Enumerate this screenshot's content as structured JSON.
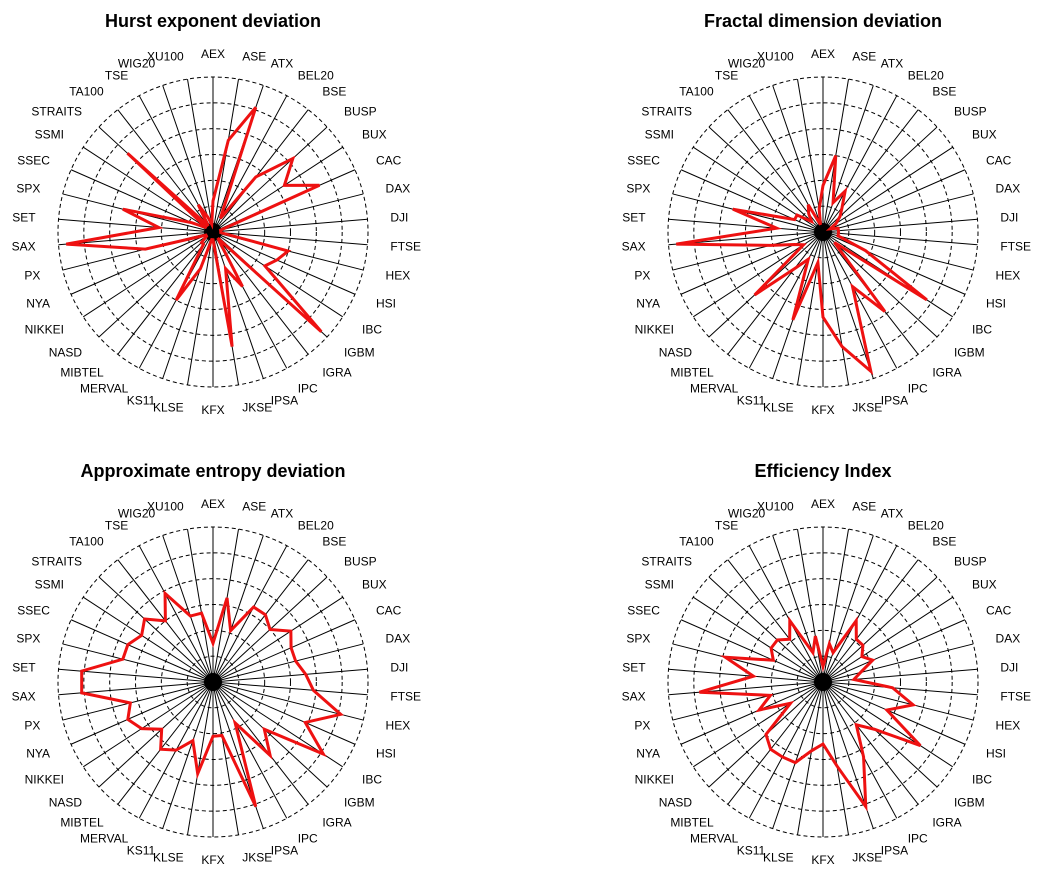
{
  "colors": {
    "series": "#ee1111",
    "grid": "#000000",
    "background": "#ffffff"
  },
  "chart_data": [
    {
      "type": "radar",
      "title": "Hurst exponent deviation",
      "rmax": 1,
      "rings": 6,
      "grid": "dashed rings, solid spokes",
      "categories": [
        "AEX",
        "ASE",
        "ATX",
        "BEL20",
        "BSE",
        "BUSP",
        "BUX",
        "CAC",
        "DAX",
        "DJI",
        "FTSE",
        "HEX",
        "HSI",
        "IBC",
        "IGBM",
        "IGRA",
        "IPC",
        "IPSA",
        "JKSE",
        "KFX",
        "KLSE",
        "KS11",
        "MERVAL",
        "MIBTEL",
        "NASD",
        "NIKKEI",
        "NYA",
        "PX",
        "SAX",
        "SET",
        "SPX",
        "SSEC",
        "SSMI",
        "STRAITS",
        "TA100",
        "TSE",
        "WIG20",
        "XU100"
      ],
      "series": [
        {
          "values": [
            0.2,
            0.6,
            0.85,
            0.1,
            0.45,
            0.7,
            0.55,
            0.75,
            0.05,
            0.05,
            0.05,
            0.5,
            0.45,
            0.4,
            0.95,
            0.05,
            0.4,
            0.25,
            0.75,
            0.05,
            0.05,
            0.25,
            0.5,
            0.1,
            0.1,
            0.05,
            0.05,
            0.45,
            0.95,
            0.35,
            0.6,
            0.15,
            0.05,
            0.75,
            0.05,
            0.2,
            0.1,
            0.05
          ]
        }
      ]
    },
    {
      "type": "radar",
      "title": "Fractal dimension deviation",
      "rmax": 1,
      "rings": 6,
      "grid": "dashed rings, solid spokes",
      "categories": [
        "AEX",
        "ASE",
        "ATX",
        "BEL20",
        "BSE",
        "BUSP",
        "BUX",
        "CAC",
        "DAX",
        "DJI",
        "FTSE",
        "HEX",
        "HSI",
        "IBC",
        "IGBM",
        "IGRA",
        "IPC",
        "IPSA",
        "JKSE",
        "KFX",
        "KLSE",
        "KS11",
        "MERVAL",
        "MIBTEL",
        "NASD",
        "NIKKEI",
        "NYA",
        "PX",
        "SAX",
        "SET",
        "SPX",
        "SSEC",
        "SSMI",
        "STRAITS",
        "TA100",
        "TSE",
        "WIG20",
        "XU100"
      ],
      "series": [
        {
          "values": [
            0.3,
            0.5,
            0.2,
            0.3,
            0.2,
            0.15,
            0.1,
            0.05,
            0.1,
            0.1,
            0.1,
            0.1,
            0.3,
            0.8,
            0.1,
            0.65,
            0.4,
            0.95,
            0.75,
            0.55,
            0.2,
            0.6,
            0.2,
            0.3,
            0.6,
            0.15,
            0.2,
            0.35,
            0.95,
            0.3,
            0.6,
            0.2,
            0.2,
            0.1,
            0.15,
            0.2,
            0.05,
            0.15
          ]
        }
      ]
    },
    {
      "type": "radar",
      "title": "Approximate entropy deviation",
      "rmax": 1,
      "rings": 6,
      "grid": "dashed rings, solid spokes",
      "categories": [
        "AEX",
        "ASE",
        "ATX",
        "BEL20",
        "BSE",
        "BUSP",
        "BUX",
        "CAC",
        "DAX",
        "DJI",
        "FTSE",
        "HEX",
        "HSI",
        "IBC",
        "IGBM",
        "IGRA",
        "IPC",
        "IPSA",
        "JKSE",
        "KFX",
        "KLSE",
        "KS11",
        "MERVAL",
        "MIBTEL",
        "NASD",
        "NIKKEI",
        "NYA",
        "PX",
        "SAX",
        "SET",
        "SPX",
        "SSEC",
        "SSMI",
        "STRAITS",
        "TA100",
        "TSE",
        "WIG20",
        "XU100"
      ],
      "series": [
        {
          "values": [
            0.25,
            0.55,
            0.35,
            0.55,
            0.55,
            0.5,
            0.6,
            0.55,
            0.55,
            0.6,
            0.65,
            0.85,
            0.65,
            0.85,
            0.45,
            0.6,
            0.3,
            0.85,
            0.35,
            0.35,
            0.6,
            0.4,
            0.5,
            0.55,
            0.45,
            0.55,
            0.6,
            0.55,
            0.85,
            0.85,
            0.6,
            0.6,
            0.55,
            0.6,
            0.5,
            0.65,
            0.45,
            0.45
          ]
        }
      ]
    },
    {
      "type": "radar",
      "title": "Efficiency Index",
      "rmax": 1,
      "rings": 6,
      "grid": "dashed rings, solid spokes",
      "categories": [
        "AEX",
        "ASE",
        "ATX",
        "BEL20",
        "BSE",
        "BUSP",
        "BUX",
        "CAC",
        "DAX",
        "DJI",
        "FTSE",
        "HEX",
        "HSI",
        "IBC",
        "IGBM",
        "IGRA",
        "IPC",
        "IPSA",
        "JKSE",
        "KFX",
        "KLSE",
        "KS11",
        "MERVAL",
        "MIBTEL",
        "NASD",
        "NIKKEI",
        "NYA",
        "PX",
        "SAX",
        "SET",
        "SPX",
        "SSEC",
        "SSMI",
        "STRAITS",
        "TA100",
        "TSE",
        "WIG20",
        "XU100"
      ],
      "series": [
        {
          "values": [
            0.1,
            0.25,
            0.2,
            0.45,
            0.35,
            0.35,
            0.3,
            0.35,
            0.25,
            0.2,
            0.45,
            0.6,
            0.45,
            0.75,
            0.45,
            0.35,
            0.55,
            0.85,
            0.55,
            0.4,
            0.45,
            0.55,
            0.55,
            0.55,
            0.5,
            0.25,
            0.45,
            0.35,
            0.8,
            0.45,
            0.65,
            0.35,
            0.4,
            0.4,
            0.35,
            0.45,
            0.2,
            0.3
          ]
        }
      ]
    }
  ]
}
